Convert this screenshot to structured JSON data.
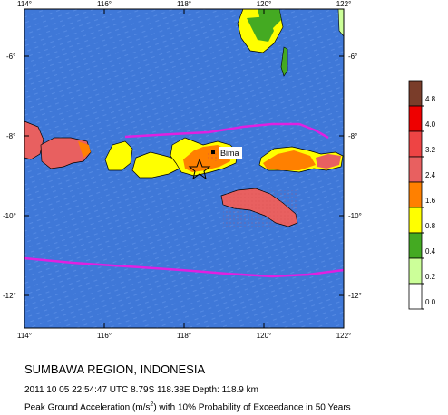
{
  "map": {
    "lon_labels_top": [
      "114°",
      "116°",
      "118°",
      "120°",
      "122°"
    ],
    "lon_labels_bottom": [
      "114°",
      "116°",
      "118°",
      "120°",
      "122°"
    ],
    "lat_labels": [
      "-6°",
      "-8°",
      "-10°",
      "-12°"
    ],
    "city": "Bima",
    "epicenter_marker": "star-icon",
    "colors": {
      "ocean": "#3f78d8",
      "plate_boundary": "#e020e0",
      "land_0_0.2": "#ffffff",
      "land_0.2_0.4": "#ccff99",
      "land_0.4_0.8": "#44aa22",
      "land_0.8_1.6": "#ffff00",
      "land_1.6_2.4": "#ff8000",
      "land_2.4_3.2": "#e86060",
      "land_3.2_4.0": "#ee4444",
      "land_4.0_4.8": "#ee0000",
      "land_4.8_plus": "#7a3d2a"
    }
  },
  "legend": {
    "ticks": [
      "4.8",
      "4.0",
      "3.2",
      "2.4",
      "1.6",
      "0.8",
      "0.4",
      "0.2",
      "0.0"
    ],
    "bins": [
      {
        "color": "#7a3d2a"
      },
      {
        "color": "#ee0000"
      },
      {
        "color": "#ee4444"
      },
      {
        "color": "#e86060"
      },
      {
        "color": "#ff8000"
      },
      {
        "color": "#ffff00"
      },
      {
        "color": "#44aa22"
      },
      {
        "color": "#ccff99"
      },
      {
        "color": "#ffffff"
      }
    ]
  },
  "caption": {
    "title": "SUMBAWA REGION, INDONESIA",
    "event": "2011 10 05 22:54:47 UTC 8.79S 118.38E Depth: 118.9 km",
    "pga_prefix": "Peak Ground Acceleration (m/s",
    "pga_sup": "2",
    "pga_suffix": ") with 10% Probability of Exceedance in 50 Years"
  }
}
